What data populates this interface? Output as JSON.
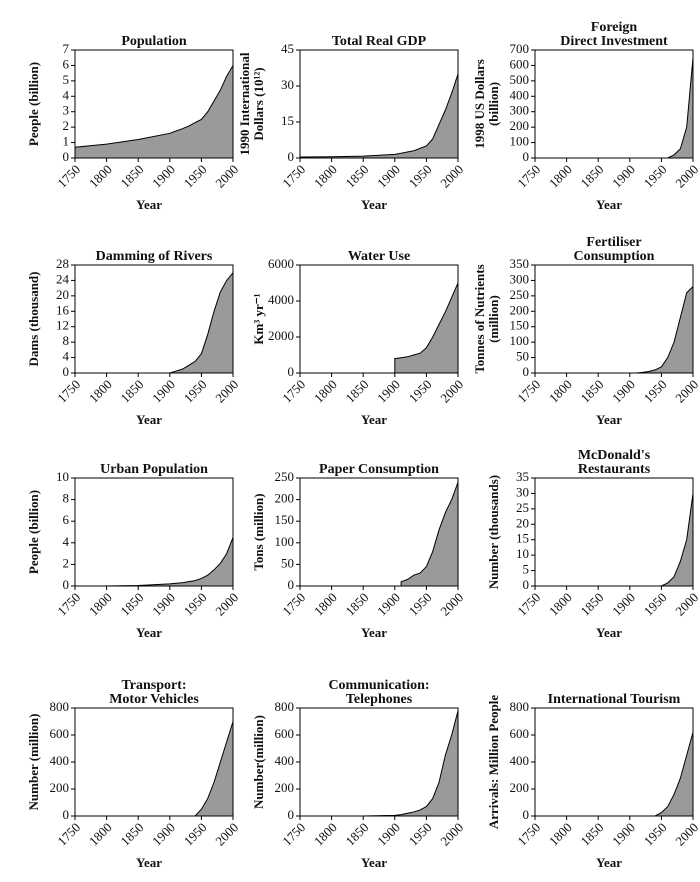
{
  "chart_data": [
    {
      "type": "area",
      "title": [
        "Population"
      ],
      "ylabel": [
        "People (billion)"
      ],
      "xlabel": "Year",
      "x": [
        1750,
        1800,
        1850,
        1900,
        1910,
        1920,
        1930,
        1940,
        1950,
        1960,
        1970,
        1980,
        1990,
        2000
      ],
      "values": [
        0.7,
        0.9,
        1.2,
        1.6,
        1.75,
        1.9,
        2.07,
        2.3,
        2.5,
        3.0,
        3.7,
        4.4,
        5.3,
        6.0
      ],
      "xlim": [
        1750,
        2000
      ],
      "ylim": [
        0,
        7
      ],
      "xticks": [
        1750,
        1800,
        1850,
        1900,
        1950,
        2000
      ],
      "yticks": [
        0,
        1,
        2,
        3,
        4,
        5,
        6,
        7
      ],
      "color": "#9a9a9a"
    },
    {
      "type": "area",
      "title": [
        "Total Real GDP"
      ],
      "ylabel": [
        "1990 International",
        "Dollars (10¹²)"
      ],
      "xlabel": "Year",
      "x": [
        1750,
        1800,
        1850,
        1900,
        1910,
        1920,
        1930,
        1940,
        1950,
        1960,
        1970,
        1980,
        1990,
        2000
      ],
      "values": [
        0.4,
        0.5,
        0.8,
        1.5,
        2,
        2.5,
        3,
        4,
        5,
        8,
        14,
        20,
        27,
        35
      ],
      "xlim": [
        1750,
        2000
      ],
      "ylim": [
        0,
        45
      ],
      "xticks": [
        1750,
        1800,
        1850,
        1900,
        1950,
        2000
      ],
      "yticks": [
        0,
        15,
        30,
        45
      ],
      "color": "#9a9a9a"
    },
    {
      "type": "area",
      "title": [
        "Foreign",
        "Direct Investment"
      ],
      "ylabel": [
        "1998 US Dollars",
        "(billion)"
      ],
      "xlabel": "Year",
      "x": [
        1750,
        1800,
        1850,
        1900,
        1910,
        1920,
        1930,
        1940,
        1950,
        1960,
        1970,
        1980,
        1990,
        2000
      ],
      "values": [
        0,
        0,
        0,
        0,
        0,
        0,
        0,
        0,
        0,
        0,
        20,
        60,
        200,
        650
      ],
      "xlim": [
        1750,
        2000
      ],
      "ylim": [
        0,
        700
      ],
      "xticks": [
        1750,
        1800,
        1850,
        1900,
        1950,
        2000
      ],
      "yticks": [
        0,
        100,
        200,
        300,
        400,
        500,
        600,
        700
      ],
      "color": "#9a9a9a"
    },
    {
      "type": "area",
      "title": [
        "Damming of Rivers"
      ],
      "ylabel": [
        "Dams (thousand)"
      ],
      "xlabel": "Year",
      "x": [
        1750,
        1800,
        1850,
        1900,
        1910,
        1920,
        1930,
        1940,
        1950,
        1960,
        1970,
        1980,
        1990,
        2000
      ],
      "values": [
        0,
        0,
        0,
        0,
        0.5,
        1,
        2,
        3,
        5,
        10,
        16,
        21,
        24,
        26
      ],
      "xlim": [
        1750,
        2000
      ],
      "ylim": [
        0,
        28
      ],
      "xticks": [
        1750,
        1800,
        1850,
        1900,
        1950,
        2000
      ],
      "yticks": [
        0,
        4,
        8,
        12,
        16,
        20,
        24,
        28
      ],
      "color": "#9a9a9a"
    },
    {
      "type": "area",
      "title": [
        "Water Use"
      ],
      "ylabel": [
        "Km³ yr⁻¹"
      ],
      "xlabel": "Year",
      "x": [
        1750,
        1800,
        1850,
        1900,
        1910,
        1920,
        1930,
        1940,
        1950,
        1960,
        1970,
        1980,
        1990,
        2000
      ],
      "values": [
        null,
        null,
        null,
        800,
        850,
        900,
        1000,
        1100,
        1400,
        2000,
        2700,
        3400,
        4200,
        5000
      ],
      "xlim": [
        1750,
        2000
      ],
      "ylim": [
        0,
        6000
      ],
      "xticks": [
        1750,
        1800,
        1850,
        1900,
        1950,
        2000
      ],
      "yticks": [
        0,
        2000,
        4000,
        6000
      ],
      "color": "#9a9a9a"
    },
    {
      "type": "area",
      "title": [
        "Fertiliser",
        "Consumption"
      ],
      "ylabel": [
        "Tonnes of Nutrients",
        "(million)"
      ],
      "xlabel": "Year",
      "x": [
        1750,
        1800,
        1850,
        1900,
        1910,
        1920,
        1930,
        1940,
        1950,
        1960,
        1970,
        1980,
        1990,
        2000
      ],
      "values": [
        0,
        0,
        0,
        0,
        0,
        2,
        5,
        10,
        20,
        50,
        100,
        180,
        260,
        280
      ],
      "xlim": [
        1750,
        2000
      ],
      "ylim": [
        0,
        350
      ],
      "xticks": [
        1750,
        1800,
        1850,
        1900,
        1950,
        2000
      ],
      "yticks": [
        0,
        50,
        100,
        150,
        200,
        250,
        300,
        350
      ],
      "color": "#9a9a9a"
    },
    {
      "type": "area",
      "title": [
        "Urban Population"
      ],
      "ylabel": [
        "People (billion)"
      ],
      "xlabel": "Year",
      "x": [
        1750,
        1800,
        1850,
        1900,
        1910,
        1920,
        1930,
        1940,
        1950,
        1960,
        1970,
        1980,
        1990,
        2000
      ],
      "values": [
        0,
        0,
        0.05,
        0.2,
        0.25,
        0.3,
        0.4,
        0.5,
        0.7,
        1.0,
        1.5,
        2.1,
        3.0,
        4.5
      ],
      "xlim": [
        1750,
        2000
      ],
      "ylim": [
        0,
        10
      ],
      "xticks": [
        1750,
        1800,
        1850,
        1900,
        1950,
        2000
      ],
      "yticks": [
        0,
        2,
        4,
        6,
        8,
        10
      ],
      "color": "#9a9a9a"
    },
    {
      "type": "area",
      "title": [
        "Paper Consumption"
      ],
      "ylabel": [
        "Tons (million)"
      ],
      "xlabel": "Year",
      "x": [
        1750,
        1800,
        1850,
        1900,
        1910,
        1920,
        1930,
        1940,
        1950,
        1960,
        1970,
        1980,
        1990,
        2000
      ],
      "values": [
        null,
        null,
        null,
        null,
        10,
        15,
        25,
        30,
        45,
        80,
        130,
        170,
        200,
        240
      ],
      "xlim": [
        1750,
        2000
      ],
      "ylim": [
        0,
        250
      ],
      "xticks": [
        1750,
        1800,
        1850,
        1900,
        1950,
        2000
      ],
      "yticks": [
        0,
        50,
        100,
        150,
        200,
        250
      ],
      "color": "#9a9a9a"
    },
    {
      "type": "area",
      "title": [
        "McDonald's",
        "Restaurants"
      ],
      "ylabel": [
        "Number (thousands)"
      ],
      "xlabel": "Year",
      "x": [
        1750,
        1800,
        1850,
        1900,
        1910,
        1920,
        1930,
        1940,
        1950,
        1960,
        1970,
        1980,
        1990,
        2000
      ],
      "values": [
        0,
        0,
        0,
        0,
        0,
        0,
        0,
        0,
        0,
        1,
        3,
        8,
        15,
        30
      ],
      "xlim": [
        1750,
        2000
      ],
      "ylim": [
        0,
        35
      ],
      "xticks": [
        1750,
        1800,
        1850,
        1900,
        1950,
        2000
      ],
      "yticks": [
        0,
        5,
        10,
        15,
        20,
        25,
        30,
        35
      ],
      "color": "#9a9a9a"
    },
    {
      "type": "area",
      "title": [
        "Transport:",
        "Motor Vehicles"
      ],
      "ylabel": [
        "Number (million)"
      ],
      "xlabel": "Year",
      "x": [
        1750,
        1800,
        1850,
        1900,
        1910,
        1920,
        1930,
        1940,
        1950,
        1960,
        1970,
        1980,
        1990,
        2000
      ],
      "values": [
        0,
        0,
        0,
        0,
        0,
        0,
        0,
        0,
        50,
        130,
        250,
        400,
        550,
        700
      ],
      "xlim": [
        1750,
        2000
      ],
      "ylim": [
        0,
        800
      ],
      "xticks": [
        1750,
        1800,
        1850,
        1900,
        1950,
        2000
      ],
      "yticks": [
        0,
        200,
        400,
        600,
        800
      ],
      "color": "#9a9a9a"
    },
    {
      "type": "area",
      "title": [
        "Communication:",
        "Telephones"
      ],
      "ylabel": [
        "Number(million)"
      ],
      "xlabel": "Year",
      "x": [
        1750,
        1800,
        1850,
        1900,
        1910,
        1920,
        1930,
        1940,
        1950,
        1960,
        1970,
        1980,
        1990,
        2000
      ],
      "values": [
        0,
        0,
        0,
        5,
        10,
        20,
        30,
        45,
        70,
        130,
        250,
        450,
        600,
        780
      ],
      "xlim": [
        1750,
        2000
      ],
      "ylim": [
        0,
        800
      ],
      "xticks": [
        1750,
        1800,
        1850,
        1900,
        1950,
        2000
      ],
      "yticks": [
        0,
        200,
        400,
        600,
        800
      ],
      "color": "#9a9a9a"
    },
    {
      "type": "area",
      "title": [
        "International Tourism"
      ],
      "ylabel": [
        "Arrivals: Million People"
      ],
      "xlabel": "Year",
      "x": [
        1750,
        1800,
        1850,
        1900,
        1910,
        1920,
        1930,
        1940,
        1950,
        1960,
        1970,
        1980,
        1990,
        2000
      ],
      "values": [
        0,
        0,
        0,
        0,
        0,
        0,
        0,
        0,
        25,
        70,
        160,
        280,
        450,
        620
      ],
      "xlim": [
        1750,
        2000
      ],
      "ylim": [
        0,
        800
      ],
      "xticks": [
        1750,
        1800,
        1850,
        1900,
        1950,
        2000
      ],
      "yticks": [
        0,
        200,
        400,
        600,
        800
      ],
      "color": "#9a9a9a"
    }
  ]
}
